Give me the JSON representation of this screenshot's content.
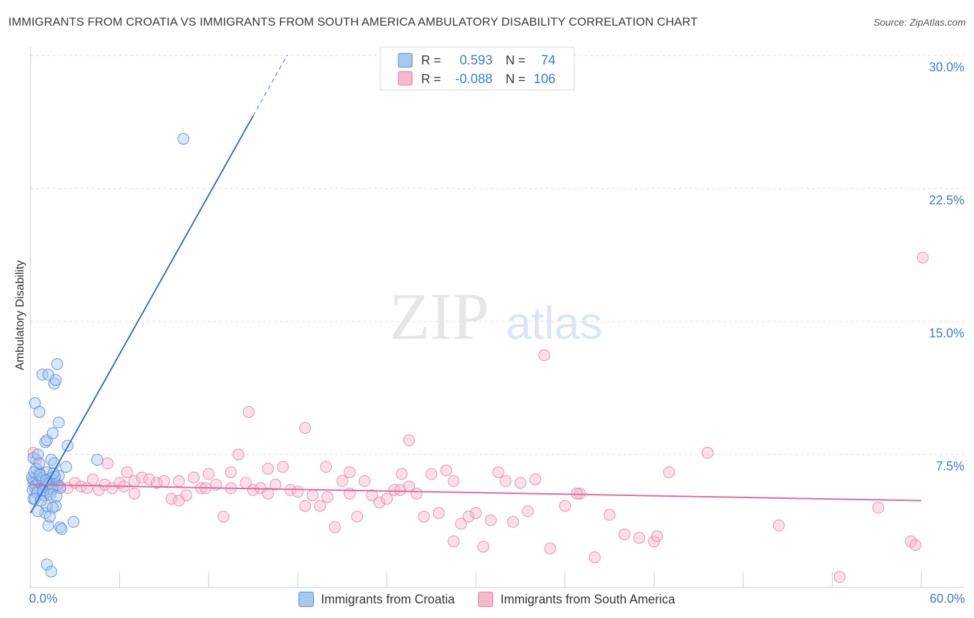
{
  "header": {
    "title": "IMMIGRANTS FROM CROATIA VS IMMIGRANTS FROM SOUTH AMERICA AMBULATORY DISABILITY CORRELATION CHART",
    "source": "Source: ZipAtlas.com"
  },
  "watermark": {
    "zip": "ZIP",
    "atlas": "atlas"
  },
  "colors": {
    "blue_fill": "#a8c8f0",
    "blue_stroke": "#4a86d8",
    "blue_line": "#2f6fcc",
    "pink_fill": "#f6b8cb",
    "pink_stroke": "#e87da0",
    "pink_line": "#e0679a",
    "axis_label": "#3d7bd1",
    "grid": "#dddddd"
  },
  "chart_data": {
    "type": "scatter",
    "title": "IMMIGRANTS FROM CROATIA VS IMMIGRANTS FROM SOUTH AMERICA AMBULATORY DISABILITY CORRELATION CHART",
    "xlabel": "",
    "ylabel": "Ambulatory Disability",
    "xlim": [
      0,
      60
    ],
    "ylim": [
      0,
      30
    ],
    "x_tick_labels": [
      "0.0%",
      "60.0%"
    ],
    "y_ticks": [
      7.5,
      15.0,
      22.5,
      30.0
    ],
    "y_tick_labels": [
      "7.5%",
      "15.0%",
      "22.5%",
      "30.0%"
    ],
    "legend_stats": [
      {
        "r_label": "R =",
        "r_value": "0.593",
        "n_label": "N =",
        "n_value": "74"
      },
      {
        "r_label": "R =",
        "r_value": "-0.088",
        "n_label": "N =",
        "n_value": "106"
      }
    ],
    "series": [
      {
        "name": "Immigrants from Croatia",
        "color": "blue",
        "trend": {
          "x0": 0,
          "y0": 4.2,
          "x1": 15.0,
          "y1": 26.6,
          "dash_to_x": 17.3
        },
        "points": [
          [
            0.2,
            7.3
          ],
          [
            0.3,
            10.4
          ],
          [
            0.5,
            7.5
          ],
          [
            0.6,
            9.9
          ],
          [
            0.8,
            12.0
          ],
          [
            1.0,
            8.2
          ],
          [
            1.1,
            8.3
          ],
          [
            1.2,
            12.0
          ],
          [
            1.4,
            7.2
          ],
          [
            1.5,
            8.7
          ],
          [
            1.6,
            11.5
          ],
          [
            1.7,
            11.7
          ],
          [
            1.8,
            12.6
          ],
          [
            1.9,
            9.3
          ],
          [
            2.4,
            6.8
          ],
          [
            2.5,
            8.0
          ],
          [
            4.5,
            7.2
          ],
          [
            10.3,
            25.3
          ],
          [
            0.1,
            6.2
          ],
          [
            0.2,
            5.9
          ],
          [
            0.3,
            5.6
          ],
          [
            0.4,
            6.0
          ],
          [
            0.5,
            5.5
          ],
          [
            0.6,
            6.4
          ],
          [
            0.7,
            5.8
          ],
          [
            0.8,
            5.3
          ],
          [
            0.9,
            6.1
          ],
          [
            1.0,
            5.7
          ],
          [
            1.1,
            6.5
          ],
          [
            1.2,
            5.9
          ],
          [
            1.3,
            5.4
          ],
          [
            1.4,
            6.2
          ],
          [
            1.5,
            5.7
          ],
          [
            1.6,
            6.0
          ],
          [
            1.7,
            4.6
          ],
          [
            1.8,
            5.8
          ],
          [
            1.9,
            6.3
          ],
          [
            2.0,
            5.6
          ],
          [
            0.2,
            5.0
          ],
          [
            0.4,
            6.7
          ],
          [
            0.6,
            7.0
          ],
          [
            0.8,
            6.0
          ],
          [
            1.0,
            4.2
          ],
          [
            1.1,
            4.6
          ],
          [
            1.2,
            3.5
          ],
          [
            1.5,
            4.5
          ],
          [
            2.0,
            3.4
          ],
          [
            2.1,
            3.3
          ],
          [
            2.9,
            3.7
          ],
          [
            0.5,
            4.3
          ],
          [
            0.9,
            5.2
          ],
          [
            1.1,
            1.3
          ],
          [
            1.4,
            0.9
          ],
          [
            0.2,
            6.1
          ],
          [
            0.35,
            5.75
          ],
          [
            0.55,
            5.95
          ],
          [
            0.75,
            6.15
          ],
          [
            0.95,
            5.65
          ],
          [
            1.25,
            5.85
          ],
          [
            1.45,
            5.55
          ],
          [
            1.65,
            6.25
          ],
          [
            0.15,
            5.5
          ],
          [
            0.25,
            6.5
          ],
          [
            0.45,
            5.35
          ],
          [
            0.65,
            6.35
          ],
          [
            0.85,
            5.45
          ],
          [
            1.05,
            6.05
          ],
          [
            1.35,
            5.25
          ],
          [
            1.55,
            6.45
          ],
          [
            1.75,
            5.15
          ],
          [
            0.3,
            5.0
          ],
          [
            0.7,
            4.9
          ],
          [
            1.3,
            4.0
          ],
          [
            1.6,
            7.0
          ]
        ]
      },
      {
        "name": "Immigrants from South America",
        "color": "pink",
        "trend": {
          "x0": 0,
          "y0": 5.8,
          "x1": 60,
          "y1": 4.9
        },
        "points": [
          [
            0.2,
            7.6
          ],
          [
            0.4,
            7.2
          ],
          [
            0.6,
            6.5
          ],
          [
            0.8,
            6.1
          ],
          [
            1.0,
            6.0
          ],
          [
            1.3,
            5.8
          ],
          [
            1.6,
            5.6
          ],
          [
            2.0,
            5.7
          ],
          [
            2.5,
            5.6
          ],
          [
            3.0,
            5.9
          ],
          [
            3.4,
            5.7
          ],
          [
            3.8,
            5.6
          ],
          [
            4.2,
            6.1
          ],
          [
            4.6,
            5.5
          ],
          [
            5.0,
            5.8
          ],
          [
            5.5,
            5.6
          ],
          [
            6.0,
            5.9
          ],
          [
            6.5,
            6.5
          ],
          [
            7.0,
            6.0
          ],
          [
            7.5,
            6.2
          ],
          [
            8.0,
            6.1
          ],
          [
            8.5,
            5.9
          ],
          [
            9.0,
            6.0
          ],
          [
            9.5,
            5.0
          ],
          [
            10.0,
            4.9
          ],
          [
            10.5,
            5.2
          ],
          [
            11.0,
            6.2
          ],
          [
            11.5,
            5.6
          ],
          [
            12.0,
            6.4
          ],
          [
            12.5,
            5.8
          ],
          [
            13.0,
            4.0
          ],
          [
            13.5,
            5.6
          ],
          [
            14.0,
            7.5
          ],
          [
            14.5,
            5.9
          ],
          [
            15.0,
            5.5
          ],
          [
            15.5,
            5.6
          ],
          [
            16.0,
            5.3
          ],
          [
            16.5,
            5.8
          ],
          [
            17.0,
            6.8
          ],
          [
            17.5,
            5.5
          ],
          [
            18.0,
            5.4
          ],
          [
            18.5,
            4.6
          ],
          [
            19.0,
            5.2
          ],
          [
            19.5,
            4.6
          ],
          [
            20.0,
            5.1
          ],
          [
            20.5,
            3.4
          ],
          [
            21.0,
            6.0
          ],
          [
            21.5,
            5.3
          ],
          [
            22.0,
            4.0
          ],
          [
            22.5,
            6.0
          ],
          [
            23.0,
            5.2
          ],
          [
            23.5,
            4.8
          ],
          [
            24.0,
            5.0
          ],
          [
            24.5,
            5.5
          ],
          [
            25.0,
            6.4
          ],
          [
            25.5,
            5.7
          ],
          [
            26.0,
            5.3
          ],
          [
            26.5,
            4.0
          ],
          [
            27.0,
            6.4
          ],
          [
            27.5,
            4.2
          ],
          [
            28.0,
            6.6
          ],
          [
            28.5,
            2.6
          ],
          [
            29.0,
            3.6
          ],
          [
            29.5,
            4.0
          ],
          [
            30.0,
            4.2
          ],
          [
            30.5,
            2.3
          ],
          [
            31.0,
            3.8
          ],
          [
            31.5,
            6.5
          ],
          [
            32.0,
            6.0
          ],
          [
            32.5,
            3.7
          ],
          [
            33.0,
            5.9
          ],
          [
            33.5,
            4.3
          ],
          [
            34.0,
            6.1
          ],
          [
            35.0,
            2.2
          ],
          [
            36.0,
            4.6
          ],
          [
            37.0,
            5.3
          ],
          [
            38.0,
            1.7
          ],
          [
            39.0,
            4.1
          ],
          [
            40.0,
            3.0
          ],
          [
            41.0,
            2.8
          ],
          [
            42.0,
            2.6
          ],
          [
            43.0,
            6.5
          ],
          [
            10.0,
            6.0
          ],
          [
            13.5,
            6.5
          ],
          [
            16.0,
            6.7
          ],
          [
            18.5,
            9.0
          ],
          [
            21.5,
            6.5
          ],
          [
            25.5,
            8.3
          ],
          [
            28.5,
            6.0
          ],
          [
            14.7,
            9.9
          ],
          [
            34.6,
            13.1
          ],
          [
            36.8,
            5.3
          ],
          [
            42.2,
            2.9
          ],
          [
            45.6,
            7.6
          ],
          [
            50.4,
            3.5
          ],
          [
            54.5,
            0.6
          ],
          [
            57.1,
            4.5
          ],
          [
            59.3,
            2.6
          ],
          [
            59.6,
            2.4
          ],
          [
            60.1,
            18.6
          ],
          [
            5.2,
            7.0
          ],
          [
            7.0,
            5.3
          ],
          [
            11.8,
            5.6
          ],
          [
            19.9,
            6.8
          ],
          [
            24.9,
            5.5
          ],
          [
            6.3,
            5.7
          ]
        ]
      }
    ],
    "legend": [
      {
        "name": "Immigrants from Croatia",
        "color": "blue"
      },
      {
        "name": "Immigrants from South America",
        "color": "pink"
      }
    ]
  }
}
